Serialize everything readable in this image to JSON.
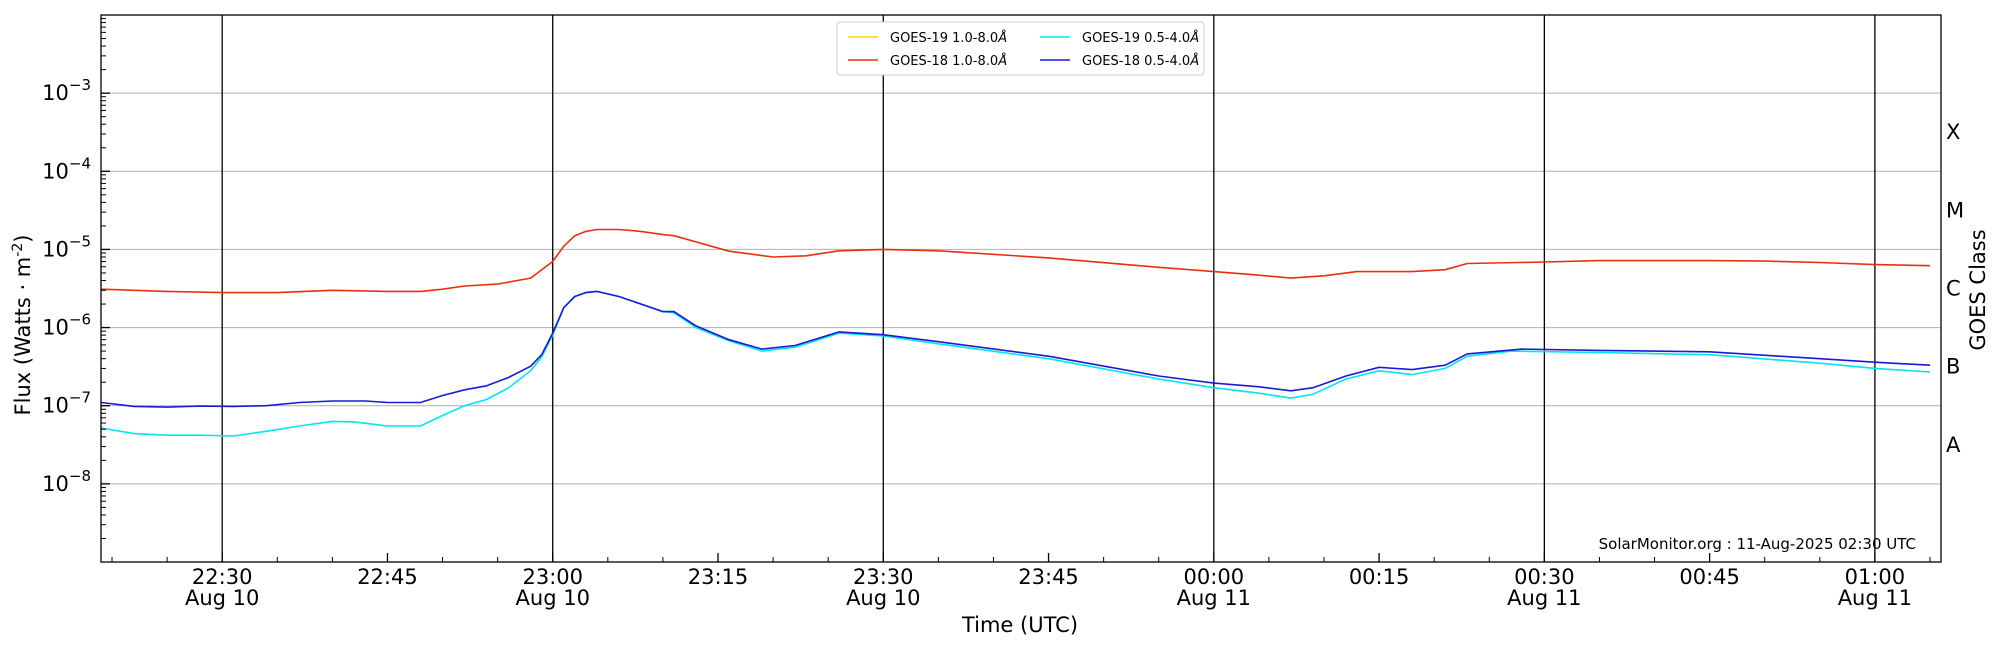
{
  "chart_data": {
    "type": "line",
    "y_scale": "log",
    "xlabel": "Time (UTC)",
    "ylabel": "Flux (Watts · m",
    "ylabel_exp": "-2",
    "ylabel_close": ")",
    "right_label": "GOES Class",
    "ylim": [
      1e-09,
      0.01
    ],
    "xlim": [
      "2025-08-10 22:19",
      "2025-08-11 01:06"
    ],
    "grid": "horizontal at decades",
    "legend_position": "top-center",
    "watermark": "SolarMonitor.org : 11-Aug-2025 02:30 UTC",
    "y_ticks": [
      {
        "value": 1e-08,
        "base": "10",
        "exp": "−8"
      },
      {
        "value": 1e-07,
        "base": "10",
        "exp": "−7"
      },
      {
        "value": 1e-06,
        "base": "10",
        "exp": "−6"
      },
      {
        "value": 1e-05,
        "base": "10",
        "exp": "−5"
      },
      {
        "value": 0.0001,
        "base": "10",
        "exp": "−4"
      },
      {
        "value": 0.001,
        "base": "10",
        "exp": "−3"
      }
    ],
    "x_ticks": [
      {
        "time": "2025-08-10 22:30",
        "time_label": "22:30",
        "date_label": "Aug 10",
        "major": true
      },
      {
        "time": "2025-08-10 22:45",
        "time_label": "22:45",
        "date_label": "",
        "major": false
      },
      {
        "time": "2025-08-10 23:00",
        "time_label": "23:00",
        "date_label": "Aug 10",
        "major": true
      },
      {
        "time": "2025-08-10 23:15",
        "time_label": "23:15",
        "date_label": "",
        "major": false
      },
      {
        "time": "2025-08-10 23:30",
        "time_label": "23:30",
        "date_label": "Aug 10",
        "major": true
      },
      {
        "time": "2025-08-10 23:45",
        "time_label": "23:45",
        "date_label": "",
        "major": false
      },
      {
        "time": "2025-08-11 00:00",
        "time_label": "00:00",
        "date_label": "Aug 11",
        "major": true
      },
      {
        "time": "2025-08-11 00:15",
        "time_label": "00:15",
        "date_label": "",
        "major": false
      },
      {
        "time": "2025-08-11 00:30",
        "time_label": "00:30",
        "date_label": "Aug 11",
        "major": true
      },
      {
        "time": "2025-08-11 00:45",
        "time_label": "00:45",
        "date_label": "",
        "major": false
      },
      {
        "time": "2025-08-11 01:00",
        "time_label": "01:00",
        "date_label": "Aug 11",
        "major": true
      }
    ],
    "goes_classes": [
      {
        "label": "A",
        "value": 3.16e-08
      },
      {
        "label": "B",
        "value": 3.16e-07
      },
      {
        "label": "C",
        "value": 3.16e-06
      },
      {
        "label": "M",
        "value": 3.16e-05
      },
      {
        "label": "X",
        "value": 0.000316
      }
    ],
    "series": [
      {
        "name": "GOES-19 1.0-8.0",
        "color": "#ffd700",
        "visible": false,
        "points": []
      },
      {
        "name": "GOES-18 1.0-8.0",
        "color": "#e8300e",
        "points": [
          [
            "2025-08-10 22:19",
            3.1e-06
          ],
          [
            "2025-08-10 22:25",
            2.9e-06
          ],
          [
            "2025-08-10 22:30",
            2.8e-06
          ],
          [
            "2025-08-10 22:35",
            2.8e-06
          ],
          [
            "2025-08-10 22:40",
            3e-06
          ],
          [
            "2025-08-10 22:45",
            2.9e-06
          ],
          [
            "2025-08-10 22:48",
            2.9e-06
          ],
          [
            "2025-08-10 22:50",
            3.1e-06
          ],
          [
            "2025-08-10 22:52",
            3.4e-06
          ],
          [
            "2025-08-10 22:55",
            3.6e-06
          ],
          [
            "2025-08-10 22:58",
            4.3e-06
          ],
          [
            "2025-08-10 23:00",
            7e-06
          ],
          [
            "2025-08-10 23:01",
            1.1e-05
          ],
          [
            "2025-08-10 23:02",
            1.5e-05
          ],
          [
            "2025-08-10 23:03",
            1.7e-05
          ],
          [
            "2025-08-10 23:04",
            1.8e-05
          ],
          [
            "2025-08-10 23:06",
            1.8e-05
          ],
          [
            "2025-08-10 23:08",
            1.7e-05
          ],
          [
            "2025-08-10 23:10",
            1.55e-05
          ],
          [
            "2025-08-10 23:11",
            1.5e-05
          ],
          [
            "2025-08-10 23:13",
            1.25e-05
          ],
          [
            "2025-08-10 23:16",
            9.5e-06
          ],
          [
            "2025-08-10 23:20",
            8e-06
          ],
          [
            "2025-08-10 23:23",
            8.3e-06
          ],
          [
            "2025-08-10 23:26",
            9.6e-06
          ],
          [
            "2025-08-10 23:30",
            1e-05
          ],
          [
            "2025-08-10 23:35",
            9.6e-06
          ],
          [
            "2025-08-10 23:45",
            7.8e-06
          ],
          [
            "2025-08-10 23:55",
            5.9e-06
          ],
          [
            "2025-08-11 00:00",
            5.2e-06
          ],
          [
            "2025-08-11 00:04",
            4.7e-06
          ],
          [
            "2025-08-11 00:07",
            4.3e-06
          ],
          [
            "2025-08-11 00:10",
            4.6e-06
          ],
          [
            "2025-08-11 00:13",
            5.2e-06
          ],
          [
            "2025-08-11 00:18",
            5.2e-06
          ],
          [
            "2025-08-11 00:21",
            5.5e-06
          ],
          [
            "2025-08-11 00:23",
            6.6e-06
          ],
          [
            "2025-08-11 00:30",
            6.9e-06
          ],
          [
            "2025-08-11 00:35",
            7.2e-06
          ],
          [
            "2025-08-11 00:45",
            7.2e-06
          ],
          [
            "2025-08-11 00:50",
            7.1e-06
          ],
          [
            "2025-08-11 00:55",
            6.8e-06
          ],
          [
            "2025-08-11 01:00",
            6.4e-06
          ],
          [
            "2025-08-11 01:05",
            6.2e-06
          ]
        ]
      },
      {
        "name": "GOES-19 0.5-4.0",
        "color": "#00e5ee",
        "points": [
          [
            "2025-08-10 22:19",
            5.2e-08
          ],
          [
            "2025-08-10 22:22",
            4.4e-08
          ],
          [
            "2025-08-10 22:25",
            4.2e-08
          ],
          [
            "2025-08-10 22:28",
            4.2e-08
          ],
          [
            "2025-08-10 22:31",
            4.1e-08
          ],
          [
            "2025-08-10 22:34",
            4.7e-08
          ],
          [
            "2025-08-10 22:37",
            5.5e-08
          ],
          [
            "2025-08-10 22:40",
            6.3e-08
          ],
          [
            "2025-08-10 22:42",
            6.2e-08
          ],
          [
            "2025-08-10 22:45",
            5.5e-08
          ],
          [
            "2025-08-10 22:48",
            5.5e-08
          ],
          [
            "2025-08-10 22:50",
            7.5e-08
          ],
          [
            "2025-08-10 22:52",
            1e-07
          ],
          [
            "2025-08-10 22:54",
            1.2e-07
          ],
          [
            "2025-08-10 22:56",
            1.7e-07
          ],
          [
            "2025-08-10 22:58",
            2.8e-07
          ],
          [
            "2025-08-10 22:59",
            4.2e-07
          ],
          [
            "2025-08-10 23:00",
            8e-07
          ],
          [
            "2025-08-10 23:01",
            1.8e-06
          ],
          [
            "2025-08-10 23:02",
            2.5e-06
          ],
          [
            "2025-08-10 23:03",
            2.8e-06
          ],
          [
            "2025-08-10 23:04",
            2.9e-06
          ],
          [
            "2025-08-10 23:06",
            2.5e-06
          ],
          [
            "2025-08-10 23:08",
            2e-06
          ],
          [
            "2025-08-10 23:10",
            1.6e-06
          ],
          [
            "2025-08-10 23:11",
            1.55e-06
          ],
          [
            "2025-08-10 23:13",
            1e-06
          ],
          [
            "2025-08-10 23:16",
            6.8e-07
          ],
          [
            "2025-08-10 23:19",
            5e-07
          ],
          [
            "2025-08-10 23:22",
            5.6e-07
          ],
          [
            "2025-08-10 23:26",
            8.5e-07
          ],
          [
            "2025-08-10 23:30",
            7.8e-07
          ],
          [
            "2025-08-10 23:35",
            6.2e-07
          ],
          [
            "2025-08-10 23:45",
            4e-07
          ],
          [
            "2025-08-10 23:55",
            2.2e-07
          ],
          [
            "2025-08-11 00:00",
            1.7e-07
          ],
          [
            "2025-08-11 00:04",
            1.45e-07
          ],
          [
            "2025-08-11 00:07",
            1.25e-07
          ],
          [
            "2025-08-11 00:09",
            1.4e-07
          ],
          [
            "2025-08-11 00:12",
            2.2e-07
          ],
          [
            "2025-08-11 00:15",
            2.8e-07
          ],
          [
            "2025-08-11 00:18",
            2.5e-07
          ],
          [
            "2025-08-11 00:21",
            3e-07
          ],
          [
            "2025-08-11 00:23",
            4.3e-07
          ],
          [
            "2025-08-11 00:27",
            5e-07
          ],
          [
            "2025-08-11 00:35",
            4.8e-07
          ],
          [
            "2025-08-11 00:45",
            4.5e-07
          ],
          [
            "2025-08-11 00:55",
            3.5e-07
          ],
          [
            "2025-08-11 01:00",
            3e-07
          ],
          [
            "2025-08-11 01:05",
            2.7e-07
          ]
        ]
      },
      {
        "name": "GOES-18 0.5-4.0",
        "color": "#1a1ad6",
        "points": [
          [
            "2025-08-10 22:19",
            1.1e-07
          ],
          [
            "2025-08-10 22:22",
            9.8e-08
          ],
          [
            "2025-08-10 22:25",
            9.6e-08
          ],
          [
            "2025-08-10 22:28",
            9.9e-08
          ],
          [
            "2025-08-10 22:31",
            9.8e-08
          ],
          [
            "2025-08-10 22:34",
            1e-07
          ],
          [
            "2025-08-10 22:37",
            1.1e-07
          ],
          [
            "2025-08-10 22:40",
            1.15e-07
          ],
          [
            "2025-08-10 22:43",
            1.15e-07
          ],
          [
            "2025-08-10 22:45",
            1.1e-07
          ],
          [
            "2025-08-10 22:48",
            1.1e-07
          ],
          [
            "2025-08-10 22:50",
            1.35e-07
          ],
          [
            "2025-08-10 22:52",
            1.6e-07
          ],
          [
            "2025-08-10 22:54",
            1.8e-07
          ],
          [
            "2025-08-10 22:56",
            2.3e-07
          ],
          [
            "2025-08-10 22:58",
            3.2e-07
          ],
          [
            "2025-08-10 22:59",
            4.5e-07
          ],
          [
            "2025-08-10 23:00",
            8.5e-07
          ],
          [
            "2025-08-10 23:01",
            1.8e-06
          ],
          [
            "2025-08-10 23:02",
            2.5e-06
          ],
          [
            "2025-08-10 23:03",
            2.8e-06
          ],
          [
            "2025-08-10 23:04",
            2.9e-06
          ],
          [
            "2025-08-10 23:06",
            2.5e-06
          ],
          [
            "2025-08-10 23:08",
            2e-06
          ],
          [
            "2025-08-10 23:10",
            1.6e-06
          ],
          [
            "2025-08-10 23:11",
            1.6e-06
          ],
          [
            "2025-08-10 23:13",
            1.05e-06
          ],
          [
            "2025-08-10 23:16",
            7e-07
          ],
          [
            "2025-08-10 23:19",
            5.3e-07
          ],
          [
            "2025-08-10 23:22",
            5.9e-07
          ],
          [
            "2025-08-10 23:26",
            8.8e-07
          ],
          [
            "2025-08-10 23:30",
            8.1e-07
          ],
          [
            "2025-08-10 23:35",
            6.6e-07
          ],
          [
            "2025-08-10 23:45",
            4.3e-07
          ],
          [
            "2025-08-10 23:55",
            2.4e-07
          ],
          [
            "2025-08-11 00:00",
            1.95e-07
          ],
          [
            "2025-08-11 00:04",
            1.75e-07
          ],
          [
            "2025-08-11 00:07",
            1.55e-07
          ],
          [
            "2025-08-11 00:09",
            1.7e-07
          ],
          [
            "2025-08-11 00:12",
            2.4e-07
          ],
          [
            "2025-08-11 00:15",
            3.1e-07
          ],
          [
            "2025-08-11 00:18",
            2.9e-07
          ],
          [
            "2025-08-11 00:21",
            3.3e-07
          ],
          [
            "2025-08-11 00:23",
            4.6e-07
          ],
          [
            "2025-08-11 00:28",
            5.3e-07
          ],
          [
            "2025-08-11 00:35",
            5.1e-07
          ],
          [
            "2025-08-11 00:45",
            4.9e-07
          ],
          [
            "2025-08-11 00:55",
            4e-07
          ],
          [
            "2025-08-11 01:00",
            3.6e-07
          ],
          [
            "2025-08-11 01:05",
            3.3e-07
          ]
        ]
      }
    ]
  }
}
